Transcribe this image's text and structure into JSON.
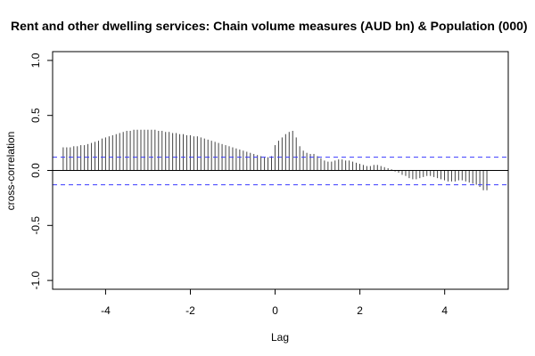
{
  "chart_data": {
    "type": "bar",
    "title": "Rent and other dwelling services: Chain volume measures (AUD bn) & Population (000)",
    "xlabel": "Lag",
    "ylabel": "cross-correlation",
    "xlim": [
      -5.25,
      5.5
    ],
    "ylim": [
      -1.08,
      1.08
    ],
    "x_ticks": [
      "-4",
      "-2",
      "0",
      "2",
      "4"
    ],
    "y_ticks": [
      "-1.0",
      "-0.5",
      "0.0",
      "0.5",
      "1.0"
    ],
    "confidence_bounds": [
      0.12,
      -0.13
    ],
    "lag_step": 0.0833,
    "lag_start": -5,
    "values": [
      0.21,
      0.21,
      0.21,
      0.22,
      0.22,
      0.23,
      0.23,
      0.24,
      0.25,
      0.26,
      0.27,
      0.29,
      0.3,
      0.31,
      0.32,
      0.33,
      0.34,
      0.35,
      0.36,
      0.36,
      0.37,
      0.37,
      0.37,
      0.37,
      0.37,
      0.37,
      0.37,
      0.36,
      0.36,
      0.35,
      0.35,
      0.34,
      0.34,
      0.33,
      0.33,
      0.32,
      0.32,
      0.31,
      0.31,
      0.3,
      0.29,
      0.28,
      0.27,
      0.26,
      0.25,
      0.24,
      0.23,
      0.22,
      0.21,
      0.2,
      0.19,
      0.18,
      0.17,
      0.16,
      0.15,
      0.14,
      0.13,
      0.12,
      0.12,
      0.13,
      0.23,
      0.27,
      0.3,
      0.33,
      0.35,
      0.36,
      0.3,
      0.22,
      0.18,
      0.16,
      0.15,
      0.15,
      0.13,
      0.11,
      0.09,
      0.08,
      0.08,
      0.09,
      0.1,
      0.1,
      0.09,
      0.09,
      0.08,
      0.07,
      0.06,
      0.05,
      0.04,
      0.04,
      0.05,
      0.05,
      0.04,
      0.03,
      0.02,
      0.01,
      -0.01,
      -0.02,
      -0.04,
      -0.05,
      -0.07,
      -0.08,
      -0.08,
      -0.07,
      -0.06,
      -0.05,
      -0.05,
      -0.06,
      -0.07,
      -0.08,
      -0.09,
      -0.1,
      -0.1,
      -0.1,
      -0.09,
      -0.09,
      -0.1,
      -0.11,
      -0.12,
      -0.13,
      -0.15,
      -0.18,
      -0.18
    ]
  },
  "colors": {
    "bar": "#444444",
    "bounds": "#3a3aff",
    "frame": "#000000"
  }
}
